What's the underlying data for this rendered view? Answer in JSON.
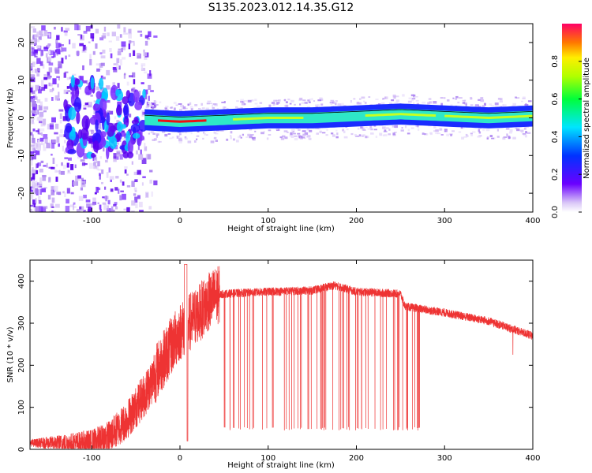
{
  "figure_title": "S135.2023.012.14.35.G12",
  "chart_data": [
    {
      "type": "heatmap",
      "xlabel": "Height of straight line (km)",
      "ylabel": "Frequency (Hz)",
      "xlim": [
        -170,
        400
      ],
      "ylim": [
        -25,
        25
      ],
      "x_ticks": [
        -100,
        0,
        100,
        200,
        300,
        400
      ],
      "y_ticks": [
        -20,
        -10,
        0,
        10,
        20
      ],
      "colorbar": {
        "label": "Normalized spectral amplitude",
        "range": [
          0,
          1
        ],
        "ticks": [
          "0.0",
          "0.2",
          "0.4",
          "0.6",
          "0.8"
        ],
        "colormap": "rainbow"
      },
      "centerline": {
        "x": [
          -40,
          0,
          50,
          100,
          150,
          200,
          250,
          300,
          350,
          400
        ],
        "y": [
          -0.5,
          -1,
          -0.5,
          0,
          0,
          0.5,
          1,
          0.5,
          0,
          0.5
        ]
      }
    },
    {
      "type": "line",
      "xlabel": "Height of straight line (km)",
      "ylabel": "SNR (10 * v/v)",
      "xlim": [
        -170,
        400
      ],
      "ylim": [
        0,
        450
      ],
      "x_ticks": [
        -100,
        0,
        100,
        200,
        300,
        400
      ],
      "y_ticks": [
        0,
        100,
        200,
        300,
        400
      ],
      "series": [
        {
          "color": "#ee3333",
          "envelope": {
            "x": [
              -170,
              -100,
              -80,
              -60,
              -40,
              -20,
              0,
              10,
              20,
              30,
              40,
              50,
              100,
              150,
              175,
              200,
              250,
              255,
              300,
              350,
              400
            ],
            "y": [
              15,
              15,
              30,
              70,
              130,
              210,
              280,
              300,
              320,
              345,
              365,
              370,
              375,
              378,
              390,
              375,
              370,
              340,
              325,
              305,
              270
            ]
          },
          "dropouts": {
            "x_range": [
              50,
              290
            ],
            "count": 70,
            "min_value": 45
          }
        }
      ]
    }
  ]
}
